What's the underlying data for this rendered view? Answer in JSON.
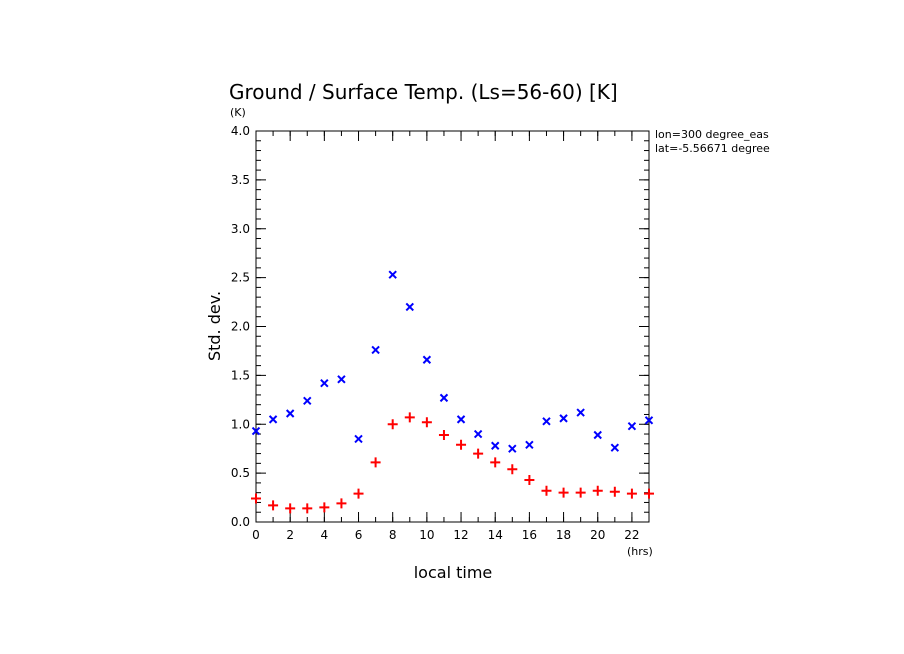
{
  "chart_data": {
    "type": "scatter",
    "title": "Ground / Surface Temp. (Ls=56-60) [K]",
    "xlabel": "local time",
    "xunit": "(hrs)",
    "ylabel": "Std. dev.",
    "yunit": "(K)",
    "xlim": [
      0,
      23
    ],
    "ylim": [
      0,
      4.0
    ],
    "xticks": [
      0,
      2,
      4,
      6,
      8,
      10,
      12,
      14,
      16,
      18,
      20,
      22
    ],
    "yticks": [
      0.0,
      0.5,
      1.0,
      1.5,
      2.0,
      2.5,
      3.0,
      3.5,
      4.0
    ],
    "annotations": [
      "lon=300 degree_eas",
      "lat=-5.56671 degree"
    ],
    "series": [
      {
        "marker": "x",
        "color": "#0000ff",
        "x": [
          0,
          1,
          2,
          3,
          4,
          5,
          6,
          7,
          8,
          9,
          10,
          11,
          12,
          13,
          14,
          15,
          16,
          17,
          18,
          19,
          20,
          21,
          22,
          23
        ],
        "values": [
          0.93,
          1.05,
          1.11,
          1.24,
          1.42,
          1.46,
          0.85,
          1.76,
          2.53,
          2.2,
          1.66,
          1.27,
          1.05,
          0.9,
          0.78,
          0.75,
          0.79,
          1.03,
          1.06,
          1.12,
          0.89,
          0.76,
          0.98,
          1.04
        ]
      },
      {
        "marker": "+",
        "color": "#ff0000",
        "x": [
          0,
          1,
          2,
          3,
          4,
          5,
          6,
          7,
          8,
          9,
          10,
          11,
          12,
          13,
          14,
          15,
          16,
          17,
          18,
          19,
          20,
          21,
          22,
          23
        ],
        "values": [
          0.24,
          0.17,
          0.14,
          0.14,
          0.15,
          0.19,
          0.29,
          0.61,
          1.0,
          1.07,
          1.02,
          0.89,
          0.79,
          0.7,
          0.61,
          0.54,
          0.43,
          0.32,
          0.3,
          0.3,
          0.32,
          0.31,
          0.29,
          0.29
        ]
      }
    ]
  }
}
